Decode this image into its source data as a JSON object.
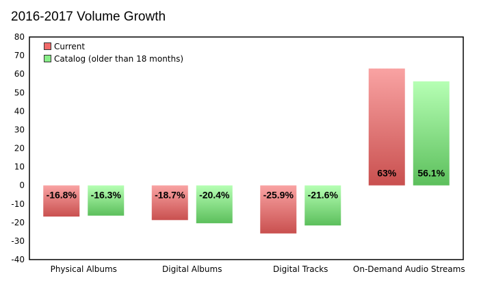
{
  "chart_data": {
    "type": "bar",
    "title": "2016-2017 Volume Growth",
    "xlabel": "",
    "ylabel": "",
    "ylim": [
      -40,
      80
    ],
    "yticks": [
      80,
      70,
      60,
      50,
      40,
      30,
      20,
      10,
      0,
      -10,
      -20,
      -30,
      -40
    ],
    "categories": [
      "Physical Albums",
      "Digital Albums",
      "Digital Tracks",
      "On-Demand Audio Streams"
    ],
    "series": [
      {
        "name": "Current",
        "values": [
          -16.8,
          -18.7,
          -25.9,
          63
        ],
        "labels": [
          "-16.8%",
          "-18.7%",
          "-25.9%",
          "63%"
        ],
        "color_top": "#f9a3a3",
        "color_bottom": "#c9504f"
      },
      {
        "name": "Catalog (older than 18 months)",
        "values": [
          -16.3,
          -20.4,
          -21.6,
          56.1
        ],
        "labels": [
          "-16.3%",
          "-20.4%",
          "-21.6%",
          "56.1%"
        ],
        "color_top": "#b6ffb4",
        "color_bottom": "#5cbf5c"
      }
    ],
    "legend_position": "top-left",
    "grid": false
  }
}
